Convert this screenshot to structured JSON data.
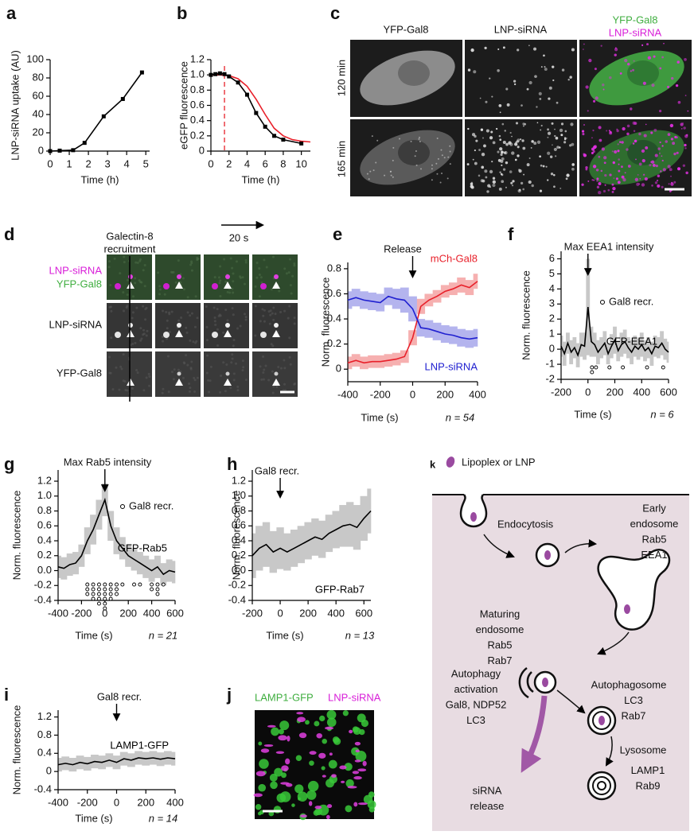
{
  "chart_data": [
    {
      "panel": "a",
      "type": "line",
      "ylabel": "LNP-siRNA uptake (AU)",
      "xlabel": "Time (h)",
      "x": [
        0,
        0.5,
        1.2,
        1.8,
        2.8,
        3.8,
        4.8
      ],
      "xlim": [
        0,
        5.2
      ],
      "xticks": [
        0,
        1,
        2,
        3,
        4,
        5
      ],
      "ylim": [
        0,
        100
      ],
      "yticks": [
        0,
        20,
        40,
        60,
        80,
        100
      ],
      "series": [
        {
          "color": "#000000",
          "marker": "square",
          "values": [
            0,
            0.5,
            1,
            9,
            38,
            57,
            86
          ]
        }
      ]
    },
    {
      "panel": "b",
      "type": "line",
      "ylabel": "eGFP fluorescence",
      "xlabel": "Time (h)",
      "xlim": [
        0,
        11
      ],
      "xticks": [
        0,
        2,
        4,
        6,
        8,
        10
      ],
      "ylim": [
        0,
        1.2
      ],
      "yticks": [
        0,
        0.2,
        0.4,
        0.6,
        0.8,
        {
          "value": 1,
          "label": "1.0"
        },
        1.2
      ],
      "vline": {
        "x": 1.5,
        "color": "#e8202a"
      },
      "series": [
        {
          "color": "#e8202a",
          "x": [
            0,
            1,
            2,
            3,
            4,
            5,
            6,
            7,
            8,
            9,
            10,
            11
          ],
          "values": [
            1,
            1,
            0.99,
            0.95,
            0.85,
            0.68,
            0.48,
            0.3,
            0.2,
            0.15,
            0.13,
            0.12
          ]
        },
        {
          "color": "#000000",
          "marker": "square",
          "x": [
            0,
            0.5,
            1,
            1.5,
            2,
            3,
            4,
            5,
            6,
            7,
            8,
            10
          ],
          "values": [
            1,
            1.01,
            1.02,
            1.01,
            0.98,
            0.9,
            0.74,
            0.5,
            0.32,
            0.2,
            0.15,
            0.1
          ]
        }
      ]
    },
    {
      "panel": "e",
      "type": "line",
      "ylabel": "Norm. fluorescence",
      "xlabel": "Time (s)",
      "n": "n = 54",
      "annotation": {
        "text": "Release",
        "x": 0
      },
      "x": [
        -400,
        -350,
        -300,
        -250,
        -200,
        -150,
        -100,
        -50,
        0,
        50,
        100,
        150,
        200,
        250,
        300,
        350,
        400
      ],
      "xlim": [
        -400,
        400
      ],
      "xticks": [
        -400,
        -200,
        0,
        200,
        400
      ],
      "ylim": [
        -0.1,
        0.85
      ],
      "yticks": [
        0,
        0.2,
        0.4,
        0.6,
        0.8
      ],
      "series": [
        {
          "name": "mCh-Gal8",
          "color": "#e8202a",
          "band_color": "#f6b0b0",
          "values": [
            0.05,
            0.07,
            0.05,
            0.06,
            0.06,
            0.07,
            0.08,
            0.1,
            0.25,
            0.5,
            0.55,
            0.58,
            0.62,
            0.64,
            0.67,
            0.65,
            0.7
          ],
          "errors": [
            0.05,
            0.05,
            0.05,
            0.05,
            0.05,
            0.05,
            0.05,
            0.05,
            0.06,
            0.06,
            0.05,
            0.05,
            0.05,
            0.05,
            0.06,
            0.06,
            0.06
          ]
        },
        {
          "name": "LNP-siRNA",
          "color": "#2020d0",
          "band_color": "#b4b4ee",
          "values": [
            0.55,
            0.57,
            0.55,
            0.54,
            0.53,
            0.58,
            0.56,
            0.55,
            0.48,
            0.33,
            0.32,
            0.3,
            0.28,
            0.27,
            0.25,
            0.24,
            0.25
          ],
          "errors": [
            0.07,
            0.07,
            0.07,
            0.07,
            0.07,
            0.07,
            0.08,
            0.1,
            0.1,
            0.07,
            0.07,
            0.07,
            0.07,
            0.07,
            0.07,
            0.07,
            0.07
          ]
        }
      ]
    },
    {
      "panel": "f",
      "type": "line",
      "ylabel": "Norm. fluorescence",
      "xlabel": "Time (s)",
      "n": "n = 6",
      "annotation": {
        "text": "Max EEA1 intensity",
        "x": 0
      },
      "recr_label": "Gal8 recr.",
      "recr": {
        "x": [
          30,
          60,
          160,
          260,
          440,
          560
        ],
        "counts": [
          2,
          1,
          1,
          1,
          1,
          1
        ]
      },
      "x": [
        -200,
        -175,
        -150,
        -125,
        -100,
        -75,
        -50,
        -25,
        0,
        25,
        50,
        75,
        100,
        125,
        150,
        175,
        200,
        225,
        250,
        275,
        300,
        325,
        350,
        375,
        400,
        425,
        450,
        475,
        500,
        525,
        550,
        575,
        600
      ],
      "xlim": [
        -200,
        600
      ],
      "xticks": [
        -200,
        0,
        200,
        400,
        600
      ],
      "ylim": [
        -2,
        6.5
      ],
      "yticks": [
        -2,
        -1,
        0,
        1,
        2,
        3,
        4,
        5,
        6
      ],
      "series": [
        {
          "name": "GFP-EEA1",
          "color": "#000000",
          "band_color": "#c8c8c8",
          "values": [
            0.2,
            -0.3,
            0.4,
            -0.2,
            0.1,
            -0.4,
            0.3,
            0.2,
            2.8,
            0.5,
            0.3,
            -0.2,
            0.1,
            0.4,
            -0.3,
            0.2,
            0.6,
            -0.1,
            0.3,
            0.5,
            0.1,
            -0.2,
            0.2,
            0,
            0.3,
            -0.1,
            0.1,
            -0.3,
            0.2,
            0.1,
            0.4,
            0,
            -0.2
          ],
          "errors": [
            0.7,
            0.8,
            0.7,
            0.8,
            0.7,
            0.8,
            0.8,
            0.9,
            3.2,
            1.0,
            0.8,
            0.8,
            0.7,
            0.8,
            0.7,
            0.8,
            0.9,
            0.7,
            0.8,
            0.8,
            0.7,
            0.8,
            0.7,
            0.7,
            0.8,
            0.7,
            0.7,
            0.8,
            0.7,
            0.7,
            0.8,
            0.7,
            0.7
          ]
        }
      ]
    },
    {
      "panel": "g",
      "type": "line",
      "ylabel": "Norm. fluorescence",
      "xlabel": "Time (s)",
      "n": "n = 21",
      "annotation": {
        "text": "Max Rab5 intensity",
        "x": 0
      },
      "recr_label": "Gal8 recr.",
      "recr": {
        "x": [
          -150,
          -100,
          -50,
          0,
          50,
          100,
          150,
          250,
          300,
          400,
          450,
          500
        ],
        "counts": [
          3,
          4,
          5,
          6,
          4,
          3,
          1,
          1,
          1,
          2,
          3,
          1
        ]
      },
      "x": [
        -400,
        -350,
        -300,
        -250,
        -200,
        -150,
        -100,
        -50,
        0,
        50,
        100,
        150,
        200,
        250,
        300,
        350,
        400,
        450,
        500,
        550,
        600
      ],
      "xlim": [
        -400,
        600
      ],
      "xticks": [
        -400,
        -200,
        0,
        200,
        400,
        600
      ],
      "ylim": [
        -0.4,
        1.35
      ],
      "yticks": [
        -0.4,
        -0.2,
        {
          "value": 0,
          "label": "0.0"
        },
        0.2,
        0.4,
        0.6,
        0.8,
        {
          "value": 1,
          "label": "1.0"
        },
        1.2
      ],
      "series": [
        {
          "name": "GFP-Rab5",
          "color": "#000000",
          "band_color": "#c8c8c8",
          "values": [
            0.05,
            0.03,
            0.08,
            0.1,
            0.2,
            0.4,
            0.55,
            0.75,
            0.95,
            0.6,
            0.4,
            0.3,
            0.2,
            0.15,
            0.1,
            0.05,
            0,
            0.05,
            -0.05,
            0,
            -0.02
          ],
          "errors": [
            0.15,
            0.15,
            0.15,
            0.15,
            0.15,
            0.18,
            0.2,
            0.2,
            0.22,
            0.2,
            0.18,
            0.15,
            0.15,
            0.15,
            0.15,
            0.15,
            0.15,
            0.15,
            0.15,
            0.15,
            0.15
          ]
        }
      ]
    },
    {
      "panel": "h",
      "type": "line",
      "ylabel": "Norm. fluorescence",
      "xlabel": "Time (s)",
      "n": "n = 13",
      "annotation": {
        "text": "Gal8 recr.",
        "x": 0
      },
      "x": [
        -200,
        -150,
        -100,
        -50,
        0,
        50,
        100,
        150,
        200,
        250,
        300,
        350,
        400,
        450,
        500,
        550,
        600,
        650
      ],
      "xlim": [
        -200,
        650
      ],
      "xticks": [
        -200,
        0,
        200,
        400,
        600
      ],
      "ylim": [
        -0.4,
        1.35
      ],
      "yticks": [
        -0.4,
        -0.2,
        {
          "value": 0,
          "label": "0.0"
        },
        0.2,
        0.4,
        0.6,
        0.8,
        {
          "value": 1,
          "label": "1.0"
        },
        1.2
      ],
      "series": [
        {
          "name": "GFP-Rab7",
          "color": "#000000",
          "band_color": "#c8c8c8",
          "values": [
            0.2,
            0.3,
            0.35,
            0.25,
            0.3,
            0.25,
            0.3,
            0.35,
            0.4,
            0.45,
            0.42,
            0.5,
            0.55,
            0.6,
            0.62,
            0.58,
            0.7,
            0.8
          ],
          "errors": [
            0.3,
            0.3,
            0.3,
            0.28,
            0.28,
            0.25,
            0.25,
            0.25,
            0.25,
            0.25,
            0.25,
            0.25,
            0.25,
            0.28,
            0.3,
            0.3,
            0.3,
            0.3
          ]
        }
      ]
    },
    {
      "panel": "i",
      "type": "line",
      "ylabel": "Norm. fluorescence",
      "xlabel": "Time (s)",
      "n": "n = 14",
      "annotation": {
        "text": "Gal8 recr.",
        "x": 0
      },
      "x": [
        -400,
        -350,
        -300,
        -250,
        -200,
        -150,
        -100,
        -50,
        0,
        50,
        100,
        150,
        200,
        250,
        300,
        350,
        400
      ],
      "xlim": [
        -400,
        400
      ],
      "xticks": [
        -400,
        -200,
        0,
        200,
        400
      ],
      "ylim": [
        -0.4,
        1.35
      ],
      "yticks": [
        -0.4,
        0,
        0.4,
        0.8,
        1.2
      ],
      "series": [
        {
          "name": "LAMP1-GFP",
          "color": "#000000",
          "band_color": "#c8c8c8",
          "values": [
            0.15,
            0.18,
            0.15,
            0.2,
            0.17,
            0.22,
            0.2,
            0.25,
            0.2,
            0.28,
            0.25,
            0.3,
            0.28,
            0.3,
            0.27,
            0.3,
            0.28
          ],
          "errors": [
            0.15,
            0.15,
            0.15,
            0.15,
            0.15,
            0.15,
            0.15,
            0.15,
            0.15,
            0.15,
            0.15,
            0.15,
            0.15,
            0.15,
            0.15,
            0.15,
            0.15
          ]
        }
      ]
    }
  ],
  "panel_c": {
    "panel": "c",
    "columns": [
      "YFP-Gal8",
      "LNP-siRNA"
    ],
    "merge": [
      "YFP-Gal8",
      "LNP-siRNA"
    ],
    "rows": [
      "120 min",
      "165 min"
    ]
  },
  "panel_d": {
    "panel": "d",
    "event": [
      "Galectin-8",
      "recruitment"
    ],
    "interval": "20 s",
    "rows": [
      [
        "LNP-siRNA",
        "YFP-Gal8"
      ],
      [
        "LNP-siRNA"
      ],
      [
        "YFP-Gal8"
      ]
    ]
  },
  "panel_j": {
    "panel": "j",
    "channels": [
      "LAMP1-GFP",
      "LNP-siRNA"
    ]
  },
  "panel_k": {
    "panel": "k",
    "legend": "Lipoplex or LNP",
    "labels": [
      [
        "Endocytosis"
      ],
      [
        "Early",
        "endosome",
        "Rab5",
        "EEA1"
      ],
      [
        "Maturing",
        "endosome",
        "Rab5",
        "Rab7"
      ],
      [
        "Autophagy",
        "activation",
        "Gal8, NDP52",
        "LC3"
      ],
      [
        "Autophagosome",
        "LC3",
        "Rab7"
      ],
      [
        "Lysosome",
        "LAMP1",
        "Rab9"
      ],
      [
        "siRNA",
        "release"
      ]
    ]
  }
}
